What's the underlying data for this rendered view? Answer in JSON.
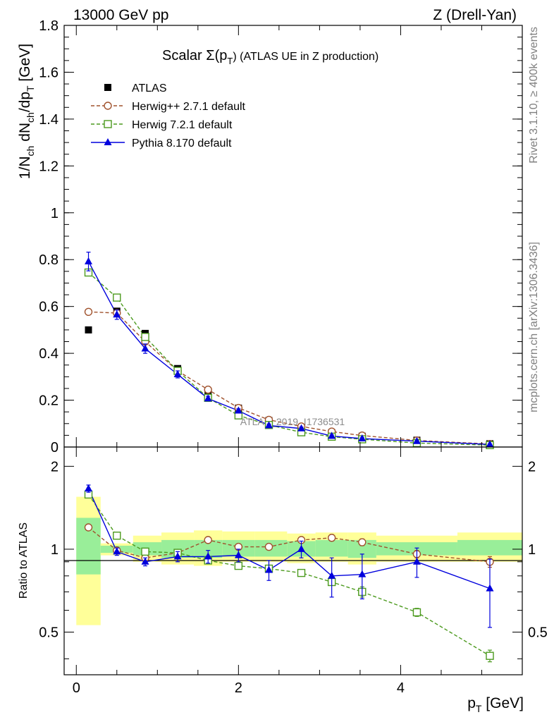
{
  "header": {
    "energy_label": "13000 GeV pp",
    "process_label": "Z (Drell-Yan)"
  },
  "side_labels": {
    "rivet": "Rivet 3.1.10, ≥ 400k events",
    "mcplots": "mcplots.cern.ch [arXiv:1306.3436]"
  },
  "chart_data": [
    {
      "type": "line",
      "panel": "main",
      "title": "Scalar Σ(pT) (ATLAS UE in Z production)",
      "title_main": "Scalar Σ(p",
      "title_sub": "T",
      "title_tail": ") (ATLAS UE in Z production)",
      "ylabel": "1/Nch dNch/dpT [GeV]",
      "ylabel_parts": {
        "a": "1/N",
        "b": "ch",
        "c": " dN",
        "d": "ch",
        "e": "/dp",
        "f": "T",
        "g": " [GeV]"
      },
      "xlim": [
        -0.15,
        5.5
      ],
      "ylim": [
        0,
        1.8
      ],
      "yticks": [
        0,
        0.2,
        0.4,
        0.6,
        0.8,
        1,
        1.2,
        1.4,
        1.6,
        1.8
      ],
      "ytick_labels": [
        "0",
        "0.2",
        "0.4",
        "0.6",
        "0.8",
        "1",
        "1.2",
        "1.4",
        "1.6",
        "1.8"
      ],
      "watermark": "ATLAS_2019_I1736531",
      "legend_position": "top-left",
      "series": [
        {
          "name": "ATLAS",
          "color": "#000000",
          "marker": "filled-square",
          "x": [
            0.15,
            0.5,
            0.85,
            1.25,
            1.625,
            2.0,
            2.375,
            2.775,
            3.15,
            3.525,
            4.2,
            5.1
          ],
          "y": [
            0.5,
            0.58,
            0.485,
            0.335,
            0.232,
            0.166,
            0.113,
            0.081,
            0.061,
            0.046,
            0.029,
            0.014
          ]
        },
        {
          "name": "Herwig++ 2.7.1 default",
          "color": "#a0522d",
          "marker": "open-circle",
          "dash": true,
          "x": [
            0.15,
            0.5,
            0.85,
            1.25,
            1.625,
            2.0,
            2.375,
            2.775,
            3.15,
            3.525,
            4.2,
            5.1
          ],
          "y": [
            0.577,
            0.572,
            0.45,
            0.325,
            0.245,
            0.167,
            0.116,
            0.088,
            0.066,
            0.049,
            0.028,
            0.013
          ]
        },
        {
          "name": "Herwig 7.2.1 default",
          "color": "#4c9a1e",
          "marker": "open-square",
          "dash": true,
          "x": [
            0.15,
            0.5,
            0.85,
            1.25,
            1.625,
            2.0,
            2.375,
            2.775,
            3.15,
            3.525,
            4.2,
            5.1
          ],
          "y": [
            0.745,
            0.638,
            0.47,
            0.325,
            0.21,
            0.135,
            0.094,
            0.063,
            0.044,
            0.033,
            0.017,
            0.008
          ]
        },
        {
          "name": "Pythia 8.170 default",
          "color": "#0000dd",
          "marker": "filled-triangle",
          "dash": false,
          "x": [
            0.15,
            0.5,
            0.85,
            1.25,
            1.625,
            2.0,
            2.375,
            2.775,
            3.15,
            3.525,
            4.2,
            5.1
          ],
          "y": [
            0.792,
            0.565,
            0.42,
            0.31,
            0.207,
            0.155,
            0.092,
            0.079,
            0.047,
            0.036,
            0.025,
            0.011
          ],
          "yerr": [
            0.04,
            0.02,
            0.02,
            0.015,
            0.01,
            0.008,
            0.006,
            0.006,
            0.005,
            0.004,
            0.003,
            0.002
          ]
        }
      ]
    },
    {
      "type": "line",
      "panel": "ratio",
      "ylabel": "Ratio to ATLAS",
      "xlabel": "pT [GeV]",
      "xlabel_main": "p",
      "xlabel_sub": "T",
      "xlabel_tail": " [GeV]",
      "xlim": [
        -0.15,
        5.5
      ],
      "ylim": [
        0.35,
        2.35
      ],
      "log_y": true,
      "xticks": [
        0,
        2,
        4
      ],
      "xtick_labels": [
        "0",
        "2",
        "4"
      ],
      "yticks": [
        0.5,
        1,
        2
      ],
      "ytick_labels": [
        "0.5",
        "1",
        "2"
      ],
      "bins": [
        [
          0,
          0.3
        ],
        [
          0.3,
          0.7
        ],
        [
          0.7,
          1.05
        ],
        [
          1.05,
          1.45
        ],
        [
          1.45,
          1.8
        ],
        [
          1.8,
          2.2
        ],
        [
          2.2,
          2.6
        ],
        [
          2.6,
          2.95
        ],
        [
          2.95,
          3.35
        ],
        [
          3.35,
          3.7
        ],
        [
          3.7,
          4.7
        ],
        [
          4.7,
          5.5
        ]
      ],
      "band_yellow": [
        [
          0.53,
          1.55
        ],
        [
          0.95,
          1.05
        ],
        [
          0.9,
          1.12
        ],
        [
          0.88,
          1.15
        ],
        [
          0.87,
          1.17
        ],
        [
          0.9,
          1.16
        ],
        [
          0.9,
          1.16
        ],
        [
          0.89,
          1.14
        ],
        [
          0.9,
          1.15
        ],
        [
          0.88,
          1.15
        ],
        [
          0.9,
          1.12
        ],
        [
          0.9,
          1.15
        ]
      ],
      "band_green": [
        [
          0.81,
          1.3
        ],
        [
          0.97,
          1.03
        ],
        [
          0.95,
          1.06
        ],
        [
          0.93,
          1.08
        ],
        [
          0.93,
          1.08
        ],
        [
          0.94,
          1.08
        ],
        [
          0.94,
          1.08
        ],
        [
          0.94,
          1.07
        ],
        [
          0.94,
          1.08
        ],
        [
          0.93,
          1.08
        ],
        [
          0.95,
          1.06
        ],
        [
          0.95,
          1.08
        ]
      ],
      "series": [
        {
          "name": "Herwig++ 2.7.1 default",
          "color": "#a0522d",
          "marker": "open-circle",
          "dash": true,
          "x": [
            0.15,
            0.5,
            0.85,
            1.25,
            1.625,
            2.0,
            2.375,
            2.775,
            3.15,
            3.525,
            4.2,
            5.1
          ],
          "y": [
            1.2,
            0.99,
            0.93,
            0.97,
            1.08,
            1.02,
            1.02,
            1.08,
            1.1,
            1.06,
            0.96,
            0.9
          ],
          "yerr": [
            0.02,
            0.02,
            0.015,
            0.02,
            0.02,
            0.02,
            0.02,
            0.02,
            0.03,
            0.03,
            0.03,
            0.04
          ]
        },
        {
          "name": "Herwig 7.2.1 default",
          "color": "#4c9a1e",
          "marker": "open-square",
          "dash": true,
          "x": [
            0.15,
            0.5,
            0.85,
            1.25,
            1.625,
            2.0,
            2.375,
            2.775,
            3.15,
            3.525,
            4.2,
            5.1
          ],
          "y": [
            1.58,
            1.12,
            0.98,
            0.97,
            0.91,
            0.87,
            0.85,
            0.82,
            0.76,
            0.7,
            0.59,
            0.41
          ],
          "yerr": [
            0.03,
            0.02,
            0.015,
            0.015,
            0.015,
            0.015,
            0.015,
            0.02,
            0.02,
            0.03,
            0.02,
            0.02
          ]
        },
        {
          "name": "Pythia 8.170 default",
          "color": "#0000dd",
          "marker": "filled-triangle",
          "dash": false,
          "x": [
            0.15,
            0.5,
            0.85,
            1.25,
            1.625,
            2.0,
            2.375,
            2.775,
            3.15,
            3.525,
            4.2,
            5.1
          ],
          "y": [
            1.66,
            0.98,
            0.9,
            0.94,
            0.94,
            0.95,
            0.84,
            1.0,
            0.8,
            0.81,
            0.9,
            0.72
          ],
          "yerr": [
            0.05,
            0.03,
            0.03,
            0.04,
            0.05,
            0.05,
            0.07,
            0.07,
            0.13,
            0.15,
            0.11,
            0.2
          ]
        }
      ]
    }
  ]
}
